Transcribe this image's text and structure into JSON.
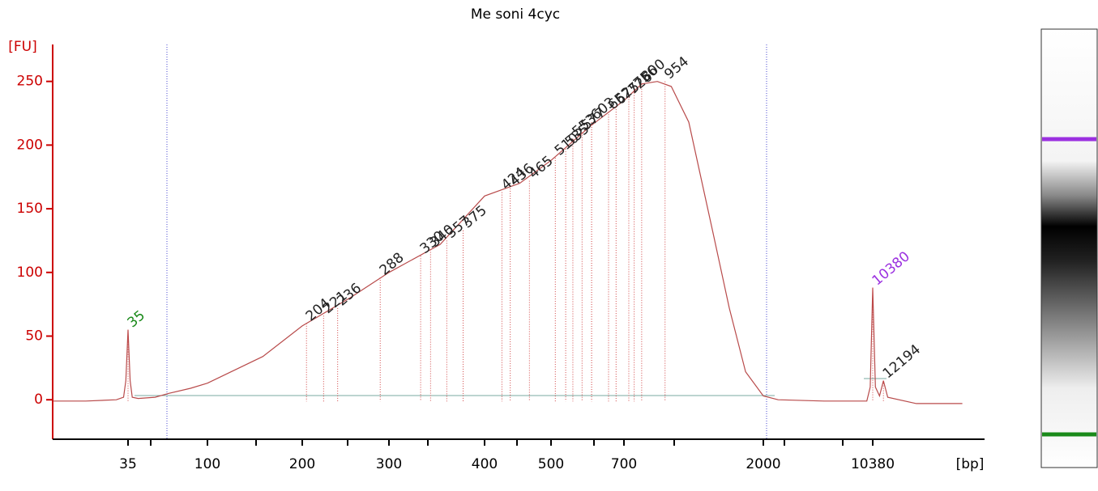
{
  "chart_data": {
    "type": "line",
    "title": "Me soni 4cyc",
    "y_label": "[FU]",
    "x_label": "[bp]",
    "x_scale": "log",
    "xticks": [
      35,
      100,
      200,
      300,
      400,
      500,
      700,
      2000,
      10380
    ],
    "ylim": [
      -31,
      279
    ],
    "yticks": [
      0,
      50,
      100,
      150,
      200,
      250
    ],
    "axis_color": "#cc0000",
    "series": [
      {
        "color": "#b84a4a",
        "x": [
          13,
          20,
          30,
          33,
          34,
          35,
          36,
          37,
          40,
          50,
          60,
          80,
          100,
          150,
          200,
          250,
          300,
          350,
          400,
          450,
          500,
          600,
          700,
          800,
          900,
          1000,
          1141,
          1372,
          1548,
          1750,
          2000,
          2500,
          5000,
          9500,
          10000,
          10380,
          10800,
          11500,
          12194,
          13000,
          20000,
          40000
        ],
        "values": [
          -1,
          -1,
          0,
          2,
          15,
          55,
          15,
          2,
          1,
          2,
          5,
          9,
          13,
          34,
          58,
          80,
          100,
          122,
          160,
          170,
          188,
          215,
          235,
          248,
          250,
          246,
          218,
          130,
          72,
          22,
          3,
          0,
          -1,
          -1,
          10,
          88,
          10,
          3,
          15,
          2,
          -3,
          -3
        ]
      }
    ],
    "peaks": {
      "x": [
        35,
        204,
        221,
        236,
        288,
        330,
        340,
        357,
        375,
        424,
        436,
        465,
        510,
        535,
        553,
        577,
        603,
        652,
        675,
        726,
        756,
        800,
        954,
        10380,
        12194
      ],
      "values": [
        55,
        60,
        66,
        72,
        96,
        113,
        118,
        125,
        133,
        163,
        166,
        172,
        190,
        197,
        205,
        210,
        218,
        226,
        230,
        238,
        243,
        248,
        250,
        88,
        15
      ],
      "colors": [
        "#1a8a1a",
        "#222",
        "#222",
        "#222",
        "#222",
        "#222",
        "#222",
        "#222",
        "#222",
        "#222",
        "#222",
        "#222",
        "#222",
        "#222",
        "#222",
        "#222",
        "#222",
        "#222",
        "#222",
        "#222",
        "#222",
        "#222",
        "#222",
        "#9b30e0",
        "#222"
      ]
    }
  }
}
